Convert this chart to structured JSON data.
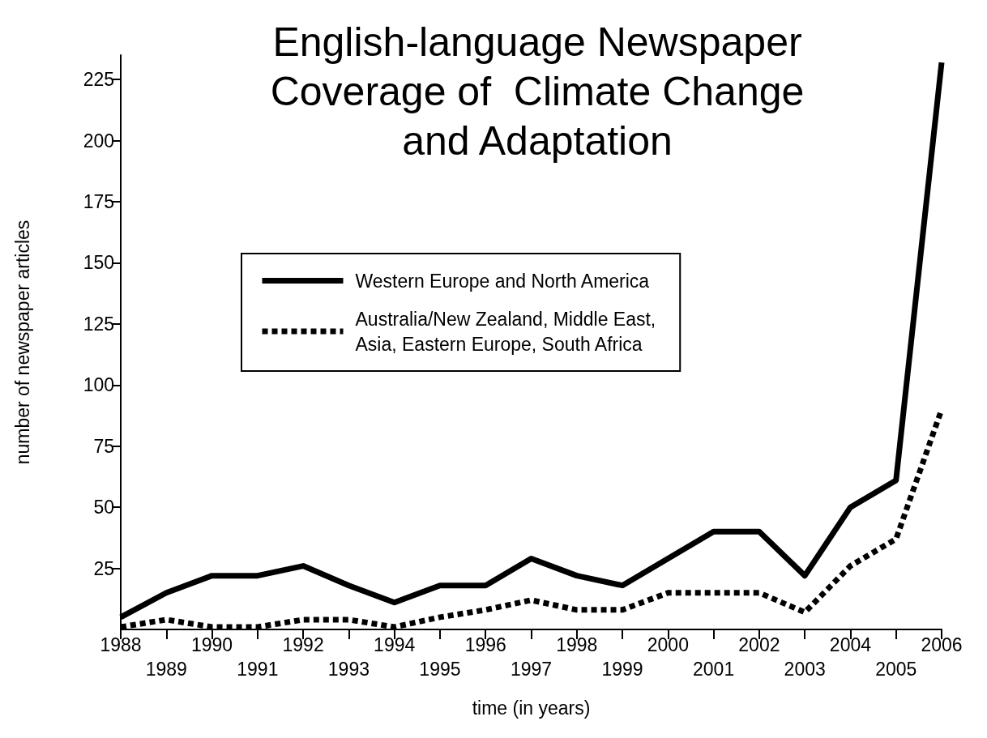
{
  "chart_data": {
    "type": "line",
    "title": "English-language Newspaper\nCoverage of  Climate Change\nand Adaptation",
    "xlabel": "time (in years)",
    "ylabel": "number of newspaper articles",
    "categories": [
      "1988",
      "1989",
      "1990",
      "1991",
      "1992",
      "1993",
      "1994",
      "1995",
      "1996",
      "1997",
      "1998",
      "1999",
      "2000",
      "2001",
      "2002",
      "2003",
      "2004",
      "2005",
      "2006"
    ],
    "series": [
      {
        "name": "Western Europe and North America",
        "color": "#000000",
        "line_style": "solid",
        "values": [
          5,
          15,
          22,
          22,
          26,
          18,
          11,
          18,
          18,
          29,
          22,
          18,
          29,
          40,
          40,
          22,
          50,
          61,
          232
        ]
      },
      {
        "name": "Australia/New Zealand, Middle East,\nAsia, Eastern Europe, South Africa",
        "color": "#000000",
        "line_style": "dotted",
        "values": [
          1,
          4,
          1,
          1,
          4,
          4,
          1,
          5,
          8,
          12,
          8,
          8,
          15,
          15,
          15,
          7,
          26,
          37,
          90
        ]
      }
    ],
    "ylim": [
      0,
      235
    ],
    "yticks": [
      25,
      50,
      75,
      100,
      125,
      150,
      175,
      200,
      225
    ],
    "grid": false,
    "legend": "top",
    "marker": "none"
  }
}
